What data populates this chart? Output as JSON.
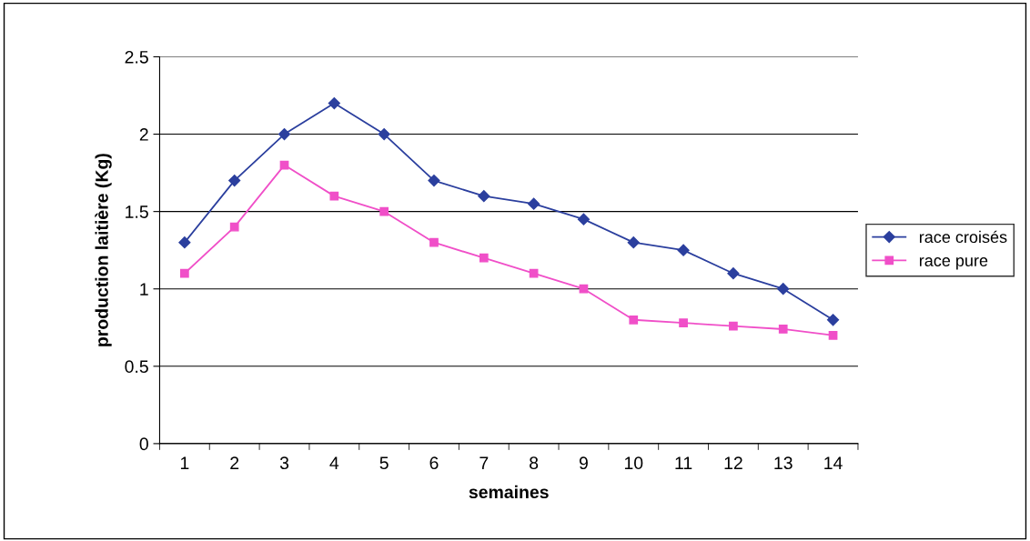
{
  "chart_data": {
    "type": "line",
    "xlabel": "semaines",
    "ylabel": "production laitière (Kg)",
    "categories": [
      "1",
      "2",
      "3",
      "4",
      "5",
      "6",
      "7",
      "8",
      "9",
      "10",
      "11",
      "12",
      "13",
      "14"
    ],
    "series": [
      {
        "name": "race croisés",
        "color": "#2b3f9e",
        "marker": "diamond",
        "values": [
          1.3,
          1.7,
          2.0,
          2.2,
          2.0,
          1.7,
          1.6,
          1.55,
          1.45,
          1.3,
          1.25,
          1.1,
          1.0,
          0.8
        ]
      },
      {
        "name": "race pure",
        "color": "#f04fc8",
        "marker": "square",
        "values": [
          1.1,
          1.4,
          1.8,
          1.6,
          1.5,
          1.3,
          1.2,
          1.1,
          1.0,
          0.8,
          0.78,
          0.76,
          0.74,
          0.7
        ]
      }
    ],
    "ylim": [
      0,
      2.5
    ],
    "yticks": [
      0,
      0.5,
      1,
      1.5,
      2,
      2.5
    ],
    "grid": "y",
    "legend": "right",
    "line_style": "solid"
  }
}
